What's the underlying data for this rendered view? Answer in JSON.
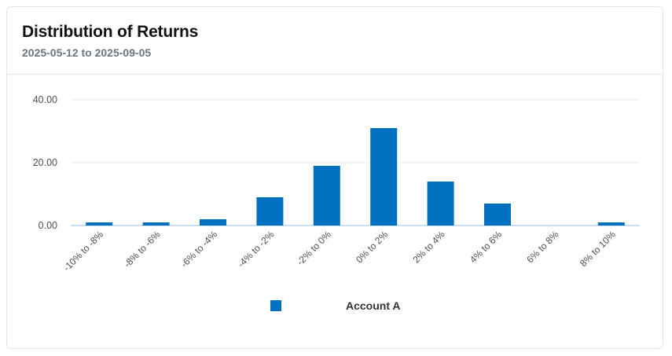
{
  "header": {
    "title": "Distribution of Returns",
    "date_range": "2025-05-12 to 2025-09-05"
  },
  "colors": {
    "bar": "#0070bf",
    "grid": "#e6e8eb",
    "baseline": "#b9d5ee",
    "text": "#4a4f55"
  },
  "chart_data": {
    "type": "bar",
    "title": "Distribution of Returns",
    "subtitle": "2025-05-12 to 2025-09-05",
    "categories": [
      "-10% to -8%",
      "-8% to -6%",
      "-6% to -4%",
      "-4% to -2%",
      "-2% to 0%",
      "0% to 2%",
      "2% to 4%",
      "4% to 6%",
      "6% to 8%",
      "8% to 10%"
    ],
    "series": [
      {
        "name": "Account A",
        "values": [
          1,
          1,
          2,
          9,
          19,
          31,
          14,
          7,
          0,
          1
        ]
      }
    ],
    "yticks": [
      "0.00",
      "20.00",
      "40.00"
    ],
    "ytick_values": [
      0,
      20,
      40
    ],
    "ylim": [
      0,
      40
    ],
    "grid": true,
    "legend_position": "bottom"
  },
  "legend": {
    "label": "Account A"
  }
}
